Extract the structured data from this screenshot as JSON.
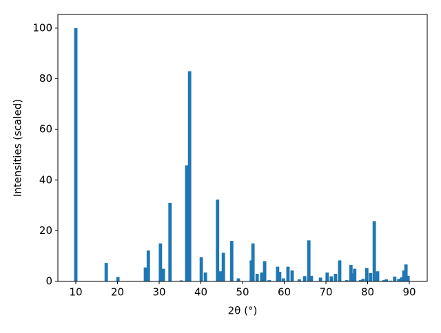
{
  "chart_data": {
    "type": "bar",
    "xlabel": "2θ (°)",
    "ylabel": "Intensities (scaled)",
    "color": "#1f77b4",
    "bar_width": 0.8,
    "x": [
      10,
      17.3,
      20.1,
      26.7,
      27.4,
      30.3,
      31.0,
      32.6,
      35.3,
      36.6,
      37.3,
      40.1,
      41.1,
      44.0,
      44.7,
      45.4,
      47.4,
      49.0,
      52.1,
      52.5,
      53.5,
      54.6,
      55.3,
      56.4,
      58.4,
      58.9,
      59.8,
      60.9,
      61.9,
      63.6,
      64.9,
      65.9,
      66.5,
      68.7,
      70.3,
      71.3,
      72.3,
      73.3,
      75.0,
      76.0,
      76.3,
      76.9,
      78.3,
      78.9,
      79.8,
      80.7,
      81.6,
      82.4,
      83.9,
      84.5,
      85.5,
      86.5,
      87.5,
      88.2,
      88.7,
      89.2,
      89.7
    ],
    "values": [
      100,
      7.3,
      1.7,
      5.5,
      12.2,
      15,
      5,
      31,
      0.4,
      45.8,
      83,
      9.5,
      3.5,
      32.3,
      4,
      11.3,
      16,
      1.2,
      8.3,
      15,
      3,
      3.5,
      8,
      0.5,
      5.8,
      3.8,
      1.2,
      5.8,
      4.3,
      0.8,
      2.1,
      16.2,
      2.2,
      1.5,
      3.5,
      2,
      3,
      8.3,
      0.5,
      6.5,
      3.2,
      5,
      0.5,
      1,
      5.3,
      3.3,
      23.8,
      4,
      0.5,
      0.8,
      0.3,
      1.9,
      1,
      1.6,
      4.3,
      6.7,
      2.2
    ],
    "xlim": [
      5.7,
      94.3
    ],
    "ylim": [
      0,
      105.4
    ],
    "xticks": [
      10,
      20,
      30,
      40,
      50,
      60,
      70,
      80,
      90
    ],
    "yticks": [
      0,
      20,
      40,
      60,
      80,
      100
    ]
  }
}
